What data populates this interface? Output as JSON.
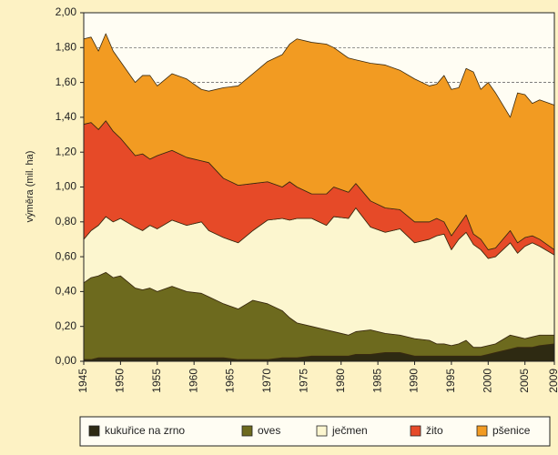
{
  "chart_data": {
    "type": "stacked-area",
    "y_label": "výměra (mil. ha)",
    "x": [
      1945,
      1946,
      1947,
      1948,
      1949,
      1950,
      1952,
      1953,
      1954,
      1955,
      1957,
      1959,
      1961,
      1962,
      1964,
      1966,
      1968,
      1970,
      1972,
      1973,
      1974,
      1976,
      1978,
      1979,
      1981,
      1982,
      1984,
      1986,
      1988,
      1990,
      1992,
      1993,
      1994,
      1995,
      1996,
      1997,
      1998,
      1999,
      2000,
      2001,
      2003,
      2004,
      2005,
      2006,
      2007,
      2009
    ],
    "series": [
      {
        "name": "kukuřice na zrno",
        "color": "#2e2a12",
        "values": [
          0.01,
          0.01,
          0.02,
          0.02,
          0.02,
          0.02,
          0.02,
          0.02,
          0.02,
          0.02,
          0.02,
          0.02,
          0.02,
          0.02,
          0.02,
          0.01,
          0.01,
          0.01,
          0.02,
          0.02,
          0.02,
          0.03,
          0.03,
          0.03,
          0.03,
          0.04,
          0.04,
          0.05,
          0.05,
          0.03,
          0.03,
          0.03,
          0.03,
          0.03,
          0.03,
          0.03,
          0.03,
          0.03,
          0.04,
          0.05,
          0.07,
          0.08,
          0.08,
          0.08,
          0.09,
          0.1
        ]
      },
      {
        "name": "oves",
        "color": "#6d6a1e",
        "values": [
          0.44,
          0.47,
          0.47,
          0.49,
          0.46,
          0.47,
          0.4,
          0.39,
          0.4,
          0.38,
          0.41,
          0.38,
          0.37,
          0.35,
          0.31,
          0.29,
          0.34,
          0.32,
          0.27,
          0.23,
          0.2,
          0.17,
          0.15,
          0.14,
          0.12,
          0.13,
          0.14,
          0.11,
          0.1,
          0.1,
          0.09,
          0.07,
          0.07,
          0.06,
          0.07,
          0.09,
          0.05,
          0.05,
          0.05,
          0.05,
          0.08,
          0.06,
          0.05,
          0.06,
          0.06,
          0.05
        ]
      },
      {
        "name": "ječmen",
        "color": "#fcf6cf",
        "values": [
          0.25,
          0.27,
          0.29,
          0.32,
          0.32,
          0.33,
          0.35,
          0.34,
          0.36,
          0.36,
          0.38,
          0.38,
          0.41,
          0.38,
          0.38,
          0.38,
          0.4,
          0.48,
          0.53,
          0.56,
          0.6,
          0.62,
          0.6,
          0.66,
          0.67,
          0.71,
          0.59,
          0.58,
          0.61,
          0.55,
          0.58,
          0.62,
          0.63,
          0.55,
          0.6,
          0.62,
          0.59,
          0.56,
          0.5,
          0.5,
          0.53,
          0.48,
          0.53,
          0.54,
          0.51,
          0.46
        ]
      },
      {
        "name": "žito",
        "color": "#e64a28",
        "values": [
          0.66,
          0.62,
          0.55,
          0.55,
          0.52,
          0.46,
          0.41,
          0.44,
          0.38,
          0.42,
          0.4,
          0.39,
          0.35,
          0.39,
          0.34,
          0.33,
          0.27,
          0.22,
          0.18,
          0.22,
          0.18,
          0.14,
          0.18,
          0.17,
          0.15,
          0.14,
          0.15,
          0.14,
          0.11,
          0.12,
          0.1,
          0.1,
          0.07,
          0.08,
          0.08,
          0.1,
          0.06,
          0.06,
          0.05,
          0.05,
          0.07,
          0.06,
          0.05,
          0.04,
          0.04,
          0.03
        ]
      },
      {
        "name": "pšenice",
        "color": "#f29b22",
        "values": [
          0.49,
          0.49,
          0.45,
          0.5,
          0.46,
          0.44,
          0.42,
          0.45,
          0.48,
          0.4,
          0.44,
          0.45,
          0.41,
          0.41,
          0.52,
          0.57,
          0.63,
          0.69,
          0.76,
          0.79,
          0.85,
          0.87,
          0.86,
          0.8,
          0.77,
          0.71,
          0.79,
          0.82,
          0.8,
          0.82,
          0.78,
          0.77,
          0.84,
          0.84,
          0.79,
          0.84,
          0.93,
          0.86,
          0.96,
          0.89,
          0.65,
          0.86,
          0.82,
          0.76,
          0.8,
          0.83
        ]
      }
    ],
    "xlim": [
      1945,
      2009
    ],
    "xticks": [
      1945,
      1950,
      1955,
      1960,
      1965,
      1970,
      1975,
      1980,
      1985,
      1990,
      1995,
      2000,
      2005,
      2009
    ],
    "ylim": [
      0,
      2
    ],
    "yticks": [
      {
        "value": 0,
        "label": "0,00"
      },
      {
        "value": 0.2,
        "label": "0,20"
      },
      {
        "value": 0.4,
        "label": "0,40"
      },
      {
        "value": 0.6,
        "label": "0,60"
      },
      {
        "value": 0.8,
        "label": "0,80"
      },
      {
        "value": 1.0,
        "label": "1,00"
      },
      {
        "value": 1.2,
        "label": "1,20"
      },
      {
        "value": 1.4,
        "label": "1,40"
      },
      {
        "value": 1.6,
        "label": "1,60"
      },
      {
        "value": 1.8,
        "label": "1,80"
      },
      {
        "value": 2.0,
        "label": "2,00"
      }
    ],
    "grid": true,
    "legend": "bottom"
  }
}
